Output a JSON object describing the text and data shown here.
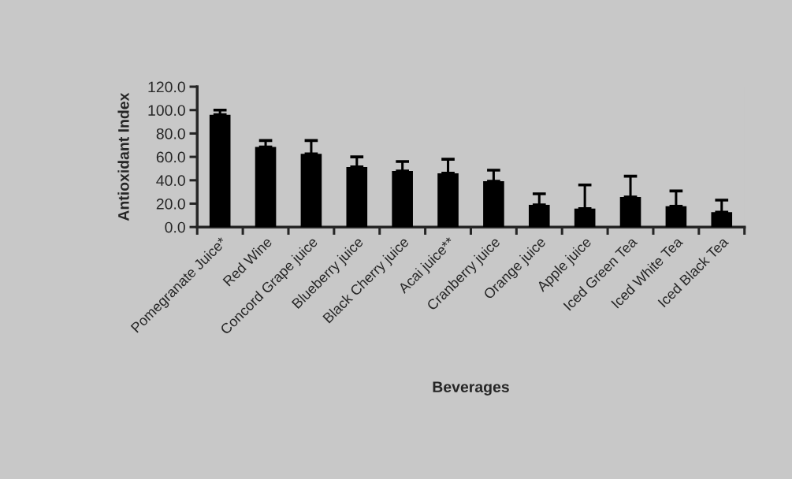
{
  "chart_data": {
    "type": "bar",
    "xlabel": "Beverages",
    "ylabel": "Antioxidant Index",
    "categories": [
      "Pomegranate Juice*",
      "Red Wine",
      "Concord Grape juice",
      "Blueberry juice",
      "Black Cherry juice",
      "Acai juice**",
      "Cranberry juice",
      "Orange juice",
      "Apple juice",
      "Iced Green Tea",
      "Iced White Tea",
      "Iced Black Tea"
    ],
    "values": [
      96,
      68.5,
      62.6,
      51.4,
      48,
      46,
      39.2,
      19,
      15.8,
      25.7,
      17.8,
      12.8
    ],
    "errors": [
      [
        96,
        100
      ],
      [
        68.5,
        74
      ],
      [
        62.6,
        74
      ],
      [
        51.4,
        60
      ],
      [
        48,
        56
      ],
      [
        46,
        58
      ],
      [
        39.2,
        48.6
      ],
      [
        19,
        28.4
      ],
      [
        15.8,
        36
      ],
      [
        25.7,
        43.5
      ],
      [
        17.8,
        30.9
      ],
      [
        12.8,
        23
      ]
    ],
    "color": "#000000",
    "ylim": [
      0,
      120
    ],
    "yticks": [
      {
        "value": 0,
        "label": "0.0"
      },
      {
        "value": 20,
        "label": "20.0"
      },
      {
        "value": 40,
        "label": "40.0"
      },
      {
        "value": 60,
        "label": "60.0"
      },
      {
        "value": 80,
        "label": "80.0"
      },
      {
        "value": 100,
        "label": "100.0"
      },
      {
        "value": 120,
        "label": "120.0"
      }
    ],
    "legend": false
  }
}
